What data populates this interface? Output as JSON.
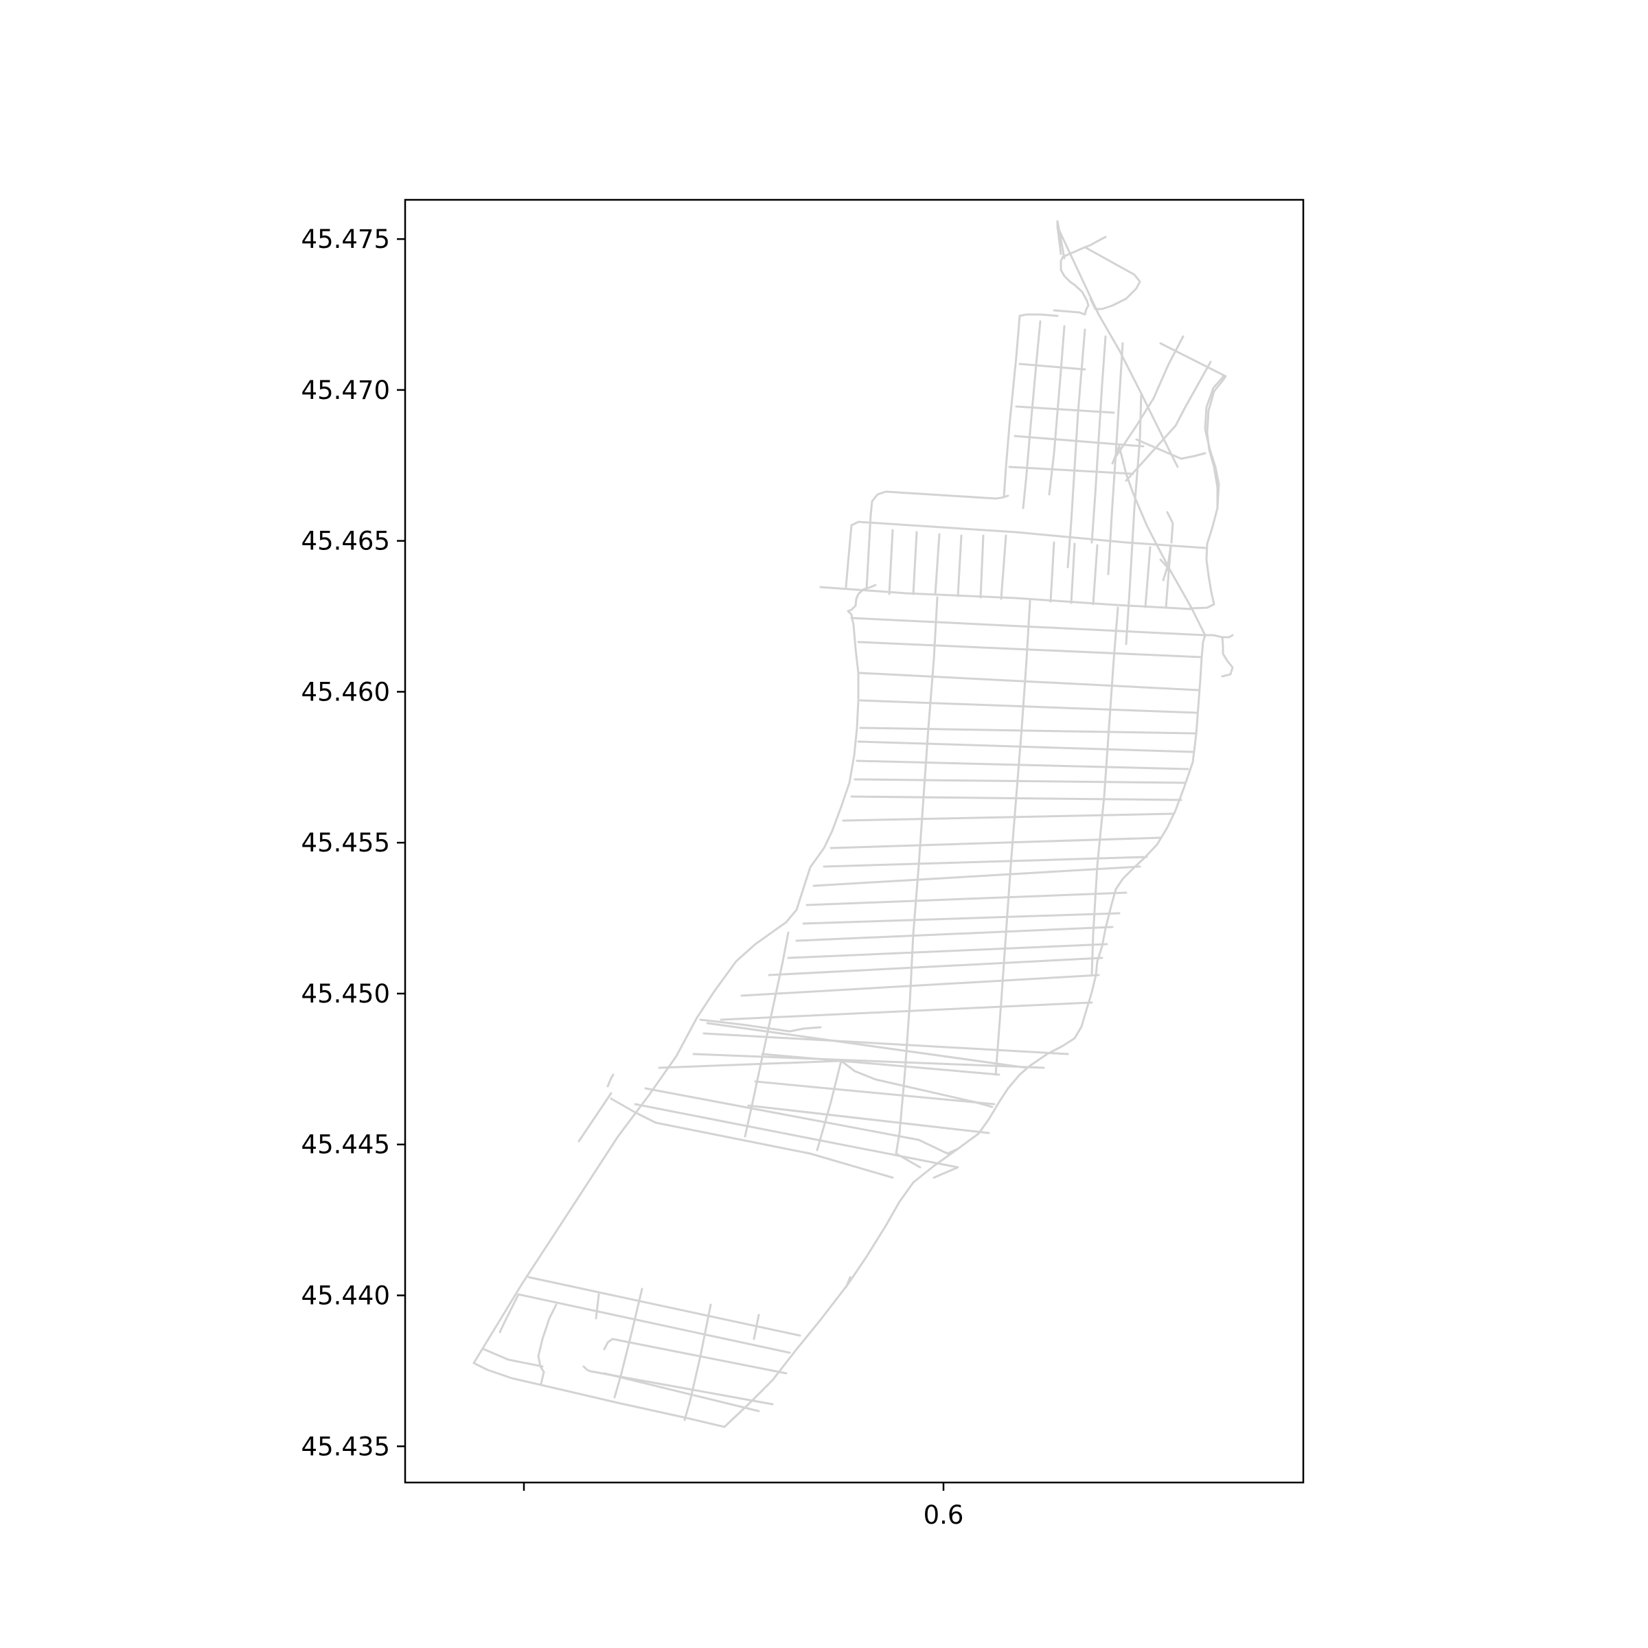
{
  "chart_data": {
    "type": "map",
    "title": "",
    "xlabel": "",
    "ylabel": "",
    "xticks": [
      {
        "value": null,
        "label": ""
      },
      {
        "value": 0.6,
        "label": "0.6"
      }
    ],
    "yticks": [
      {
        "value": 45.475,
        "label": "45.475"
      },
      {
        "value": 45.47,
        "label": "45.470"
      },
      {
        "value": 45.465,
        "label": "45.465"
      },
      {
        "value": 45.46,
        "label": "45.460"
      },
      {
        "value": 45.455,
        "label": "45.455"
      },
      {
        "value": 45.45,
        "label": "45.450"
      },
      {
        "value": 45.445,
        "label": "45.445"
      },
      {
        "value": 45.44,
        "label": "45.440"
      },
      {
        "value": 45.435,
        "label": "45.435"
      }
    ],
    "ylim": [
      45.4338,
      45.4763
    ],
    "grid": false,
    "legend": "none",
    "edge_color": "#d3d3d3",
    "layer": "street network edges"
  }
}
